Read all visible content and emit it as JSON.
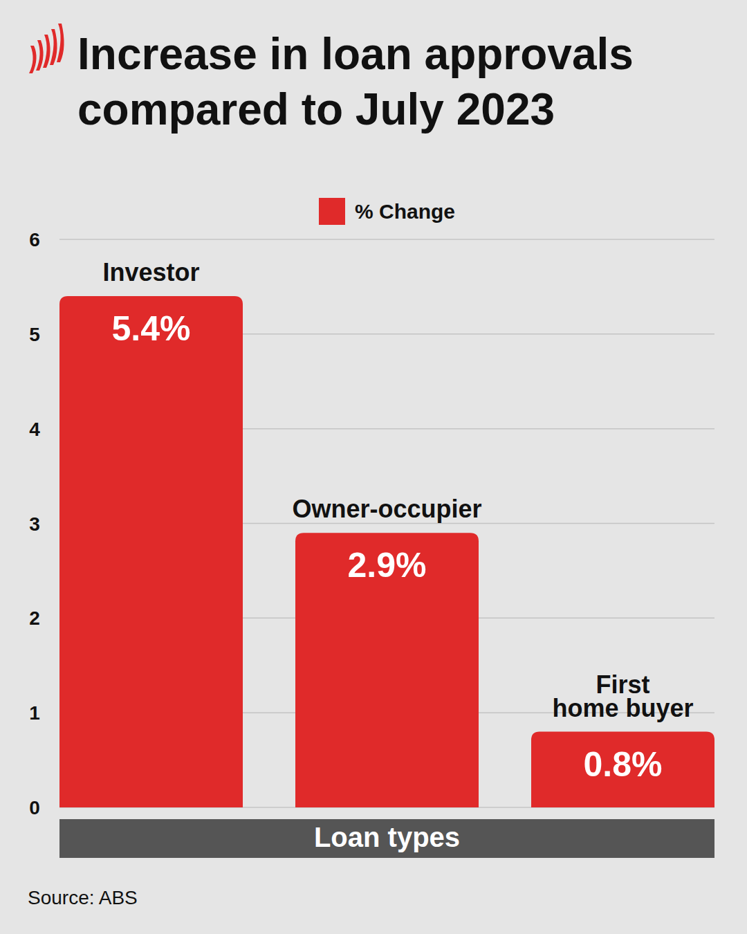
{
  "chart_data": {
    "type": "bar",
    "title": "Increase in loan approvals compared to July 2023",
    "categories": [
      "Investor",
      "Owner-occupier",
      "First home buyer"
    ],
    "series": [
      {
        "name": "% Change",
        "color": "#e02a2a",
        "values": [
          5.4,
          2.9,
          0.8
        ],
        "value_labels": [
          "5.4%",
          "2.9%",
          "0.8%"
        ]
      }
    ],
    "x_label": "Loan types",
    "source": "Source: ABS",
    "ylim": [
      0,
      6
    ],
    "yticks": [
      0,
      1,
      2,
      3,
      4,
      5,
      6
    ],
    "grid": true,
    "legend": "top",
    "data_labels": true
  }
}
